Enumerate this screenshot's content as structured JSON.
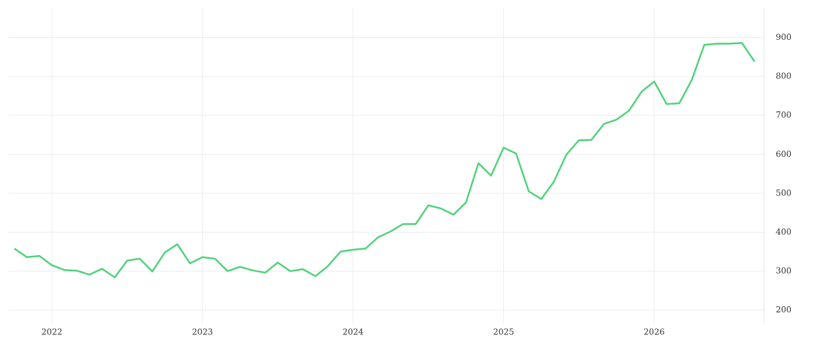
{
  "chart_data": {
    "type": "line",
    "x": [
      2021.75,
      2021.833,
      2021.917,
      2022,
      2022.083,
      2022.167,
      2022.25,
      2022.333,
      2022.417,
      2022.5,
      2022.583,
      2022.667,
      2022.75,
      2022.833,
      2022.917,
      2023,
      2023.083,
      2023.167,
      2023.25,
      2023.333,
      2023.417,
      2023.5,
      2023.583,
      2023.667,
      2023.75,
      2023.833,
      2023.917,
      2024,
      2024.083,
      2024.167,
      2024.25,
      2024.333,
      2024.417,
      2024.5,
      2024.583,
      2024.667,
      2024.75,
      2024.833,
      2024.917,
      2025,
      2025.083,
      2025.167,
      2025.25,
      2025.333,
      2025.417,
      2025.5,
      2025.583,
      2025.667,
      2025.75,
      2025.833,
      2025.917,
      2026,
      2026.083,
      2026.167,
      2026.25,
      2026.333,
      2026.417,
      2026.5,
      2026.583,
      2026.667
    ],
    "series": [
      {
        "color": "#4fd17a",
        "values": [
          358,
          336,
          339,
          315,
          303,
          301,
          291,
          306,
          284,
          327,
          332,
          299,
          348,
          369,
          320,
          336,
          332,
          300,
          311,
          302,
          296,
          322,
          300,
          305,
          287,
          313,
          350,
          355,
          358,
          387,
          402,
          421,
          421,
          469,
          461,
          445,
          476,
          577,
          545,
          617,
          602,
          505,
          485,
          529,
          599,
          636,
          637,
          678,
          689,
          712,
          761,
          787,
          729,
          731,
          791,
          881,
          884,
          884,
          886,
          838
        ]
      }
    ],
    "xlim": [
      2021.71,
      2026.73
    ],
    "xticks": [
      2022,
      2023,
      2024,
      2025,
      2026
    ],
    "ylim": [
      180,
      975
    ],
    "yticks": [
      200,
      300,
      400,
      500,
      600,
      700,
      800,
      900
    ],
    "grid": true
  }
}
